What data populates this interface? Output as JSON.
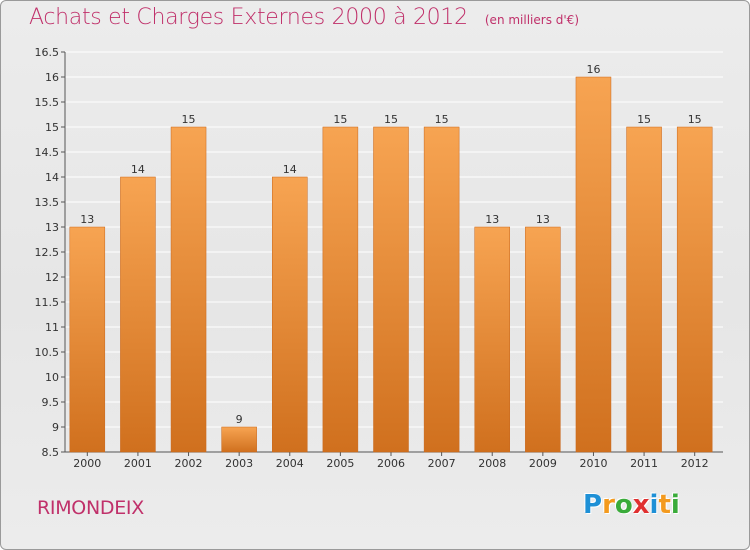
{
  "header": {
    "title": "Achats et Charges Externes 2000 à 2012",
    "unit": "(en milliers d'€)"
  },
  "footer": {
    "commune": "RIMONDEIX",
    "logo_letters": [
      "P",
      "r",
      "o",
      "x",
      "i",
      "t",
      "i"
    ],
    "logo_colors": [
      "#1e90d6",
      "#f39a1e",
      "#3aab3a",
      "#e03030",
      "#1e90d6",
      "#f39a1e",
      "#3aab3a"
    ]
  },
  "colors": {
    "title": "#c0306a",
    "bar_top": "#f7a452",
    "bar_bottom": "#d0701e"
  },
  "chart_data": {
    "type": "bar",
    "title": "Achats et Charges Externes 2000 à 2012",
    "xlabel": "",
    "ylabel": "",
    "categories": [
      "2000",
      "2001",
      "2002",
      "2003",
      "2004",
      "2005",
      "2006",
      "2007",
      "2008",
      "2009",
      "2010",
      "2011",
      "2012"
    ],
    "values": [
      13,
      14,
      15,
      9,
      14,
      15,
      15,
      15,
      13,
      13,
      16,
      15,
      15
    ],
    "ylim": [
      8.5,
      16.5
    ],
    "yticks": [
      "8.5",
      "9",
      "9.5",
      "10",
      "10.5",
      "11",
      "11.5",
      "12",
      "12.5",
      "13",
      "13.5",
      "14",
      "14.5",
      "15",
      "15.5",
      "16",
      "16.5"
    ],
    "grid": "horizontal, white"
  }
}
